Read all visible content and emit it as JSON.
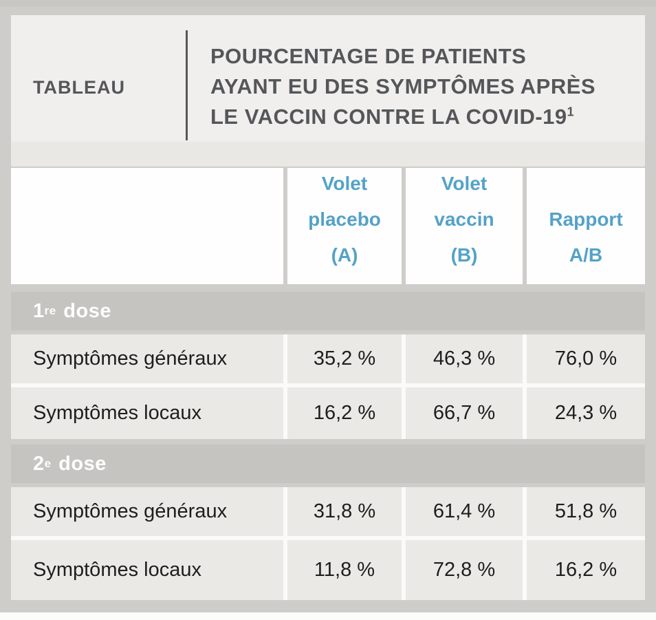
{
  "header": {
    "kicker": "TABLEAU",
    "title_lines": [
      "POURCENTAGE DE PATIENTS",
      "AYANT EU DES SYMPTÔMES APRÈS",
      "LE VACCIN CONTRE LA COVID-19"
    ],
    "title_sup": "1"
  },
  "colors": {
    "accent_blue": "#54a2c7",
    "section_band_gray": "#c6c4c1",
    "row_bg": "#ebe9e6",
    "header_text_gray": "#54565a",
    "page_gray": "#cfcdca"
  },
  "table": {
    "columns": [
      {
        "lines": [
          "Volet",
          "placebo",
          "(A)"
        ]
      },
      {
        "lines": [
          "Volet",
          "vaccin",
          "(B)"
        ]
      },
      {
        "lines": [
          "Rapport",
          "A/B"
        ]
      }
    ],
    "sections": [
      {
        "label_base": "1",
        "label_sup": "re",
        "label_rest": " dose",
        "rows": [
          {
            "label": "Symptômes généraux",
            "values": [
              "35,2 %",
              "46,3 %",
              "76,0 %"
            ]
          },
          {
            "label": "Symptômes locaux",
            "values": [
              "16,2 %",
              "66,7 %",
              "24,3 %"
            ]
          }
        ]
      },
      {
        "label_base": "2",
        "label_sup": "e",
        "label_rest": " dose",
        "rows": [
          {
            "label": "Symptômes généraux",
            "values": [
              "31,8 %",
              "61,4 %",
              "51,8 %"
            ]
          },
          {
            "label": "Symptômes locaux",
            "values": [
              "11,8 %",
              "72,8 %",
              "16,2 %"
            ]
          }
        ]
      }
    ]
  },
  "chart_data": {
    "type": "table",
    "title": "Pourcentage de patients ayant eu des symptômes après le vaccin contre la COVID-19",
    "footnote_marker": "1",
    "columns": [
      "",
      "Volet placebo (A)",
      "Volet vaccin (B)",
      "Rapport A/B"
    ],
    "sections": [
      {
        "section": "1re dose",
        "rows": [
          [
            "Symptômes généraux",
            "35,2 %",
            "46,3 %",
            "76,0 %"
          ],
          [
            "Symptômes locaux",
            "16,2 %",
            "66,7 %",
            "24,3 %"
          ]
        ]
      },
      {
        "section": "2e dose",
        "rows": [
          [
            "Symptômes généraux",
            "31,8 %",
            "61,4 %",
            "51,8 %"
          ],
          [
            "Symptômes locaux",
            "11,8 %",
            "72,8 %",
            "16,2 %"
          ]
        ]
      }
    ]
  }
}
